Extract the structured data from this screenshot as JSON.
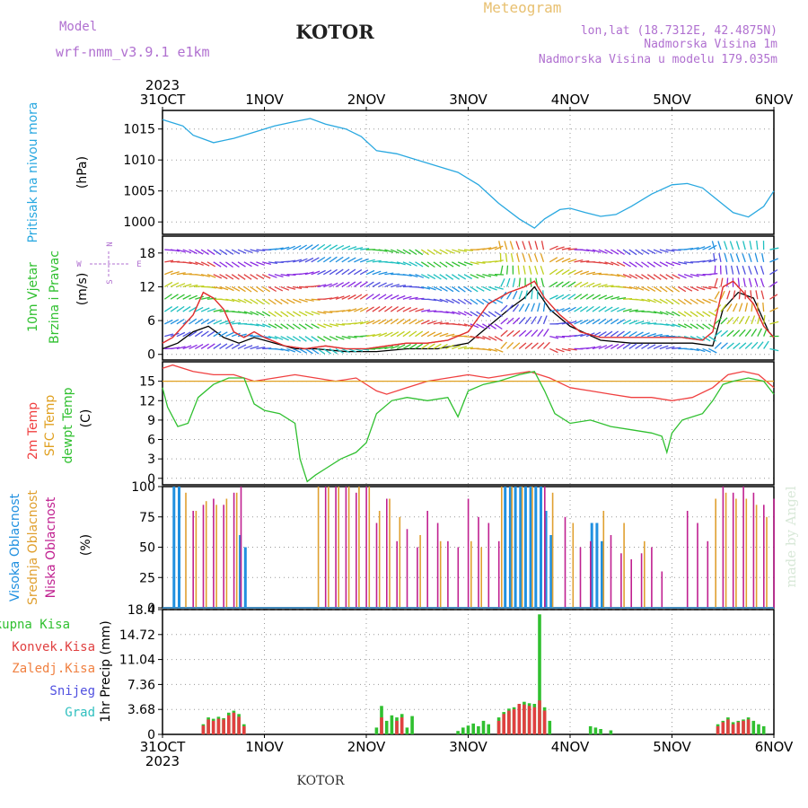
{
  "header": {
    "model_label": "Model",
    "model_name": "wrf-nmm_v3.9.1 e1km",
    "title": "KOTOR",
    "meteogram": "Meteogram",
    "lonlat": "lon,lat (18.7312E, 42.4875N)",
    "elevation": "Nadmorska Visina 1m",
    "model_elevation": "Nadmorska Visina u modelu 179.035m",
    "watermark": "made by Angel",
    "footer_title": "KOTOR"
  },
  "time_axis": {
    "year": "2023",
    "labels": [
      "31OCT",
      "1NOV",
      "2NOV",
      "3NOV",
      "4NOV",
      "5NOV",
      "6NOV"
    ],
    "days": [
      0,
      1,
      2,
      3,
      4,
      5,
      6
    ]
  },
  "colors": {
    "pressure": "#29a8e0",
    "temp2m": "#f04040",
    "sfc_temp": "#e0a020",
    "dewpt": "#30c030",
    "wind_speed": "#e03030",
    "gust": "#000000",
    "high_cloud": "#2090e0",
    "mid_cloud": "#e0a030",
    "low_cloud": "#c02090",
    "precip_total": "#30c030",
    "precip_conv": "#e04040"
  },
  "chart_data": [
    {
      "type": "line",
      "name": "pressure",
      "ylabel_main": "Pritisak na nivou mora",
      "ylabel_unit": "(hPa)",
      "ylim": [
        998,
        1018
      ],
      "ticks": [
        1000,
        1005,
        1010,
        1015
      ],
      "tick_labels": [
        "1000",
        "1005",
        "1010",
        "1015"
      ],
      "grid": true,
      "x": [
        0,
        0.1,
        0.2,
        0.3,
        0.5,
        0.7,
        0.9,
        1.1,
        1.3,
        1.45,
        1.6,
        1.8,
        1.95,
        2.1,
        2.3,
        2.5,
        2.7,
        2.9,
        3.1,
        3.3,
        3.5,
        3.65,
        3.75,
        3.9,
        4.0,
        4.15,
        4.3,
        4.45,
        4.6,
        4.8,
        5.0,
        5.15,
        5.3,
        5.45,
        5.6,
        5.75,
        5.9,
        6.0
      ],
      "y": [
        1016.5,
        1016.0,
        1015.5,
        1014.0,
        1012.8,
        1013.5,
        1014.5,
        1015.5,
        1016.2,
        1016.7,
        1015.8,
        1015.0,
        1013.8,
        1011.5,
        1011.0,
        1010.0,
        1009.0,
        1008.0,
        1006.0,
        1003.0,
        1000.5,
        999.0,
        1000.5,
        1002.0,
        1002.2,
        1001.5,
        1000.9,
        1001.2,
        1002.5,
        1004.5,
        1006.0,
        1006.2,
        1005.5,
        1003.5,
        1001.5,
        1000.8,
        1002.5,
        1005.0
      ]
    },
    {
      "type": "line",
      "name": "wind",
      "ylabel_main": "10m Vjetar",
      "ylabel_sub": "Brzina i Pravac",
      "ylabel_unit": "(m/s)",
      "compass": {
        "n": "N",
        "s": "S",
        "w": "W",
        "e": "E"
      },
      "ylim": [
        -1,
        21
      ],
      "ticks": [
        0,
        6,
        12,
        18
      ],
      "tick_labels": [
        "0",
        "6",
        "12",
        "18"
      ],
      "grid": true,
      "series": [
        {
          "x": [
            0,
            0.1,
            0.2,
            0.3,
            0.4,
            0.5,
            0.6,
            0.7,
            0.8,
            0.9,
            1.0,
            1.2,
            1.4,
            1.6,
            1.8,
            2.0,
            2.2,
            2.4,
            2.6,
            2.8,
            3.0,
            3.2,
            3.4,
            3.55,
            3.65,
            3.75,
            3.9,
            4.1,
            4.3,
            4.5,
            4.7,
            4.9,
            5.1,
            5.3,
            5.4,
            5.5,
            5.6,
            5.7,
            5.8,
            5.9,
            6.0
          ],
          "y": [
            2,
            3,
            5,
            7,
            11,
            10,
            8,
            4,
            3,
            4,
            3,
            1.5,
            1,
            1.5,
            1,
            1,
            1.5,
            2,
            2,
            2.5,
            4,
            9,
            11,
            12,
            13,
            10,
            7,
            4,
            3,
            3,
            3,
            3,
            3,
            2.5,
            4,
            12,
            13,
            11,
            9,
            5,
            3
          ]
        },
        {
          "x": [
            0,
            0.15,
            0.3,
            0.45,
            0.6,
            0.75,
            0.9,
            1.1,
            1.3,
            1.5,
            1.8,
            2.1,
            2.4,
            2.7,
            3.0,
            3.2,
            3.4,
            3.55,
            3.65,
            3.8,
            4.0,
            4.3,
            4.6,
            4.9,
            5.2,
            5.4,
            5.5,
            5.65,
            5.8,
            5.95,
            6.0
          ],
          "y": [
            1,
            2,
            4,
            5,
            3,
            2,
            3,
            2,
            1,
            1,
            0.5,
            0.5,
            1,
            1,
            2,
            5,
            8,
            10,
            12,
            8,
            5,
            2.5,
            2,
            2,
            2,
            1.5,
            8,
            11,
            10,
            4,
            3
          ]
        }
      ]
    },
    {
      "type": "line",
      "name": "temperature",
      "ylabel_2m": "2m Temp",
      "ylabel_sfc": "SFC Temp",
      "ylabel_dew": "dewpt Temp",
      "ylabel_unit": "(C)",
      "ylim": [
        -1,
        18
      ],
      "ticks": [
        0,
        3,
        6,
        9,
        12,
        15
      ],
      "tick_labels": [
        "0",
        "3",
        "6",
        "9",
        "12",
        "15"
      ],
      "grid": true,
      "series": [
        {
          "name": "2m",
          "x": [
            0,
            0.1,
            0.3,
            0.5,
            0.7,
            0.9,
            1.1,
            1.3,
            1.5,
            1.7,
            1.9,
            2.1,
            2.2,
            2.4,
            2.6,
            2.8,
            3.0,
            3.2,
            3.4,
            3.6,
            3.8,
            4.0,
            4.2,
            4.4,
            4.6,
            4.8,
            5.0,
            5.2,
            5.4,
            5.55,
            5.7,
            5.85,
            6.0
          ],
          "y": [
            17.0,
            17.5,
            16.5,
            16.0,
            16.0,
            15.0,
            15.5,
            16.0,
            15.5,
            15.0,
            15.5,
            13.5,
            13.0,
            14.0,
            15.0,
            15.5,
            16.0,
            15.5,
            16.0,
            16.5,
            15.5,
            14.0,
            13.5,
            13.0,
            12.5,
            12.5,
            12.0,
            12.5,
            14.0,
            16.0,
            16.5,
            16.0,
            14.0
          ]
        },
        {
          "name": "sfc",
          "x": [
            0,
            6
          ],
          "y": [
            15.0,
            15.0
          ]
        },
        {
          "name": "dewpt",
          "x": [
            0,
            0.05,
            0.15,
            0.25,
            0.35,
            0.5,
            0.65,
            0.8,
            0.9,
            1.0,
            1.15,
            1.3,
            1.35,
            1.42,
            1.5,
            1.6,
            1.75,
            1.9,
            2.0,
            2.1,
            2.25,
            2.4,
            2.6,
            2.8,
            2.9,
            3.0,
            3.15,
            3.3,
            3.5,
            3.65,
            3.75,
            3.85,
            4.0,
            4.2,
            4.4,
            4.6,
            4.8,
            4.9,
            4.95,
            5.0,
            5.1,
            5.3,
            5.4,
            5.5,
            5.6,
            5.75,
            5.9,
            6.0
          ],
          "y": [
            14.0,
            11.0,
            8.0,
            8.5,
            12.5,
            14.5,
            15.5,
            15.5,
            11.5,
            10.5,
            10.0,
            8.5,
            3.0,
            -0.5,
            0.5,
            1.5,
            3.0,
            4.0,
            5.5,
            10.0,
            12.0,
            12.5,
            12.0,
            12.5,
            9.5,
            13.5,
            14.5,
            15.0,
            16.0,
            16.5,
            13.5,
            10.0,
            8.5,
            9.0,
            8.0,
            7.5,
            7.0,
            6.5,
            4.0,
            7.0,
            9.0,
            10.0,
            12.0,
            14.5,
            15.0,
            15.5,
            15.0,
            13.0
          ]
        }
      ]
    },
    {
      "type": "bar",
      "name": "cloud_cover",
      "ylabel_high": "Visoka Oblacnost",
      "ylabel_mid": "Srednja Oblacnost",
      "ylabel_low": "Niska Oblacnost",
      "ylabel_unit": "(%)",
      "ylim": [
        0,
        100
      ],
      "ticks": [
        0,
        25,
        50,
        75,
        100
      ],
      "tick_labels": [
        "0",
        "25",
        "50",
        "75",
        "100"
      ],
      "grid": true,
      "series": [
        {
          "name": "high",
          "x": [
            0.1,
            0.15,
            0.75,
            0.8,
            3.35,
            3.4,
            3.45,
            3.5,
            3.55,
            3.6,
            3.65,
            3.7,
            3.75,
            3.8,
            4.2,
            4.25,
            4.3
          ],
          "values": [
            100,
            100,
            60,
            50,
            100,
            100,
            100,
            100,
            100,
            100,
            100,
            100,
            80,
            60,
            70,
            70,
            55
          ]
        },
        {
          "name": "mid",
          "x": [
            0.2,
            0.3,
            0.4,
            0.5,
            0.6,
            0.7,
            1.5,
            1.6,
            1.7,
            1.8,
            1.9,
            2.0,
            2.1,
            2.2,
            2.3,
            2.5,
            2.7,
            3.0,
            3.1,
            3.3,
            3.4,
            3.5,
            3.6,
            3.8,
            4.0,
            4.3,
            4.5,
            4.7,
            5.4,
            5.5,
            5.6,
            5.7,
            5.8,
            5.9
          ],
          "values": [
            95,
            80,
            88,
            85,
            90,
            95,
            100,
            100,
            100,
            100,
            100,
            100,
            80,
            90,
            75,
            60,
            55,
            55,
            50,
            100,
            100,
            100,
            100,
            95,
            70,
            80,
            70,
            55,
            90,
            95,
            90,
            90,
            85,
            75
          ]
        },
        {
          "name": "low",
          "x": [
            0.25,
            0.35,
            0.45,
            0.55,
            0.65,
            0.72,
            1.55,
            1.65,
            1.75,
            1.85,
            1.95,
            2.05,
            2.15,
            2.25,
            2.35,
            2.45,
            2.55,
            2.65,
            2.75,
            2.85,
            2.95,
            3.05,
            3.15,
            3.25,
            3.7,
            3.9,
            4.05,
            4.15,
            4.35,
            4.45,
            4.55,
            4.65,
            4.75,
            4.85,
            5.1,
            5.2,
            5.3,
            5.45,
            5.55,
            5.65,
            5.75,
            5.85,
            5.95
          ],
          "values": [
            80,
            85,
            90,
            85,
            95,
            100,
            100,
            100,
            100,
            95,
            100,
            70,
            90,
            55,
            65,
            50,
            80,
            70,
            55,
            50,
            90,
            75,
            70,
            55,
            100,
            75,
            50,
            55,
            60,
            45,
            40,
            45,
            50,
            30,
            80,
            70,
            55,
            100,
            95,
            100,
            95,
            85,
            90
          ]
        }
      ]
    },
    {
      "type": "bar",
      "name": "precipitation",
      "legend": [
        "Ukupna Kisa",
        "Konvek.Kisa",
        "Zaledj.Kisa",
        "Snijeg",
        "Grad"
      ],
      "ylabel_unit": "1hr Precip (mm)",
      "ylim": [
        0,
        18.4
      ],
      "ticks": [
        0,
        3.68,
        7.36,
        11.04,
        14.72,
        18.4
      ],
      "tick_labels": [
        "0",
        "3.68",
        "7.36",
        "11.04",
        "14.72",
        "18.4"
      ],
      "grid": true,
      "series": [
        {
          "name": "Ukupna Kisa",
          "x": [
            0.4,
            0.45,
            0.5,
            0.55,
            0.6,
            0.65,
            0.7,
            0.75,
            0.8,
            2.1,
            2.15,
            2.2,
            2.25,
            2.3,
            2.35,
            2.4,
            2.45,
            2.9,
            2.95,
            3.0,
            3.05,
            3.1,
            3.15,
            3.2,
            3.3,
            3.35,
            3.4,
            3.45,
            3.5,
            3.55,
            3.6,
            3.65,
            3.7,
            3.75,
            3.8,
            4.2,
            4.25,
            4.3,
            4.4,
            5.45,
            5.5,
            5.55,
            5.6,
            5.65,
            5.7,
            5.75,
            5.8,
            5.85,
            5.9
          ],
          "values": [
            1.5,
            2.5,
            2.3,
            2.6,
            2.4,
            3.2,
            3.5,
            3.0,
            1.5,
            1.0,
            4.2,
            2.0,
            2.8,
            2.5,
            3.0,
            1.0,
            2.7,
            0.5,
            1.0,
            1.3,
            1.6,
            1.2,
            2.0,
            1.5,
            2.5,
            3.3,
            3.8,
            4.0,
            4.2,
            4.8,
            4.6,
            4.5,
            17.7,
            4.0,
            2.0,
            1.2,
            1.0,
            0.8,
            0.6,
            1.5,
            2.0,
            2.5,
            1.8,
            2.0,
            2.2,
            2.5,
            2.0,
            1.5,
            1.2
          ]
        },
        {
          "name": "Konvek.Kisa",
          "x": [
            0.4,
            0.45,
            0.5,
            0.55,
            0.6,
            0.65,
            0.7,
            0.75,
            0.8,
            2.15,
            2.3,
            2.35,
            3.3,
            3.35,
            3.4,
            3.45,
            3.5,
            3.55,
            3.6,
            3.65,
            3.7,
            3.75,
            5.45,
            5.5,
            5.55,
            5.6,
            5.65,
            5.7,
            5.75
          ],
          "values": [
            1.3,
            2.2,
            2.0,
            2.3,
            2.2,
            2.8,
            3.2,
            2.6,
            1.2,
            2.5,
            2.0,
            2.5,
            2.0,
            3.0,
            3.5,
            3.7,
            4.5,
            4.4,
            4.2,
            4.0,
            5.0,
            3.5,
            1.2,
            1.8,
            2.2,
            1.5,
            1.8,
            2.0,
            2.2
          ]
        }
      ]
    }
  ]
}
